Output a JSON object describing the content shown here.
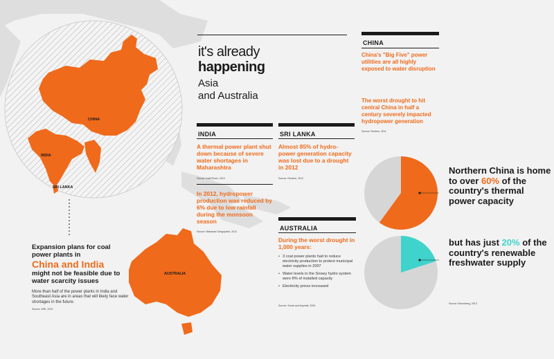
{
  "title": {
    "line1": "it's already",
    "line2": "happening",
    "line3": "Asia",
    "line4": "and Australia"
  },
  "map_labels": {
    "china": "CHINA",
    "india": "INDIA",
    "sri_lanka": "SRI LANKA",
    "australia": "AUSTRALIA"
  },
  "china": {
    "heading": "CHINA",
    "fact1": "China's \"Big Five\" power utilities are all highly exposed to water disruption",
    "fact2": "The worst drought to hit central China in half a century severely impacted hydropower generation",
    "source": "Source: Reuters, 2011"
  },
  "india": {
    "heading": "INDIA",
    "fact1": "A thermal power plant shut down because of severe water shortages in Maharashtra",
    "source1": "Source: IndiaTimes, 2012",
    "fact2": "In 2012, hydropower production was reduced by 6% due to low rainfall during the monsoon season",
    "source2": "Source: Mahanad Gangopdhe, 2012"
  },
  "sri_lanka": {
    "heading": "SRI LANKA",
    "fact": "Almost 85% of hydro-power generation capacity was lost due to a drought in 2012",
    "source": "Source: Reuters, 2012"
  },
  "australia": {
    "heading": "AUSTRALIA",
    "fact": "During the worst drought in 1,000 years:",
    "bullets": [
      "3 coal power plants had to reduce electricity production to protect municipal water supplies in 2007",
      "Water levels in the Snowy hydro system were 8% of installed capacity",
      "Electricity prices increased"
    ],
    "source": "Source: Smart and Aspinall, 2009"
  },
  "callout": {
    "line1": "Expansion plans for coal power plants in",
    "highlight": "China and India",
    "line2": "might not be feasible due to water scarcity issues",
    "body": "More than half of the power plants in India and Southeast Asia are in areas that will likely face water shortages in the future.",
    "source": "Source: WRI, 2010"
  },
  "pie1": {
    "text_pre": "Northern China is home to over",
    "percent_label": "60%",
    "text_post": "of the country's thermal power capacity",
    "fraction": 0.6
  },
  "pie2": {
    "text_pre": "but has just",
    "percent_label": "20%",
    "text_post": "of the country's renewable freshwater supply",
    "fraction": 0.2,
    "source": "Source: Bloomberg, 2013"
  },
  "colors": {
    "orange": "#ef6a1a",
    "teal": "#3fd3cc",
    "grey": "#d6d6d6",
    "dark": "#1a1a1a"
  }
}
